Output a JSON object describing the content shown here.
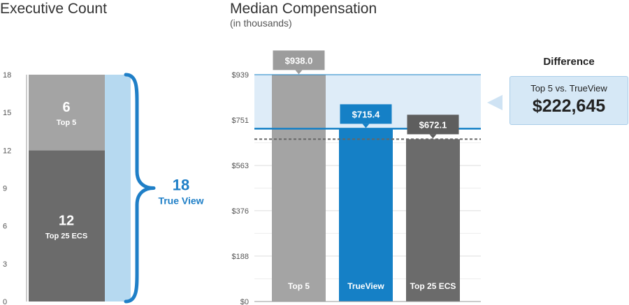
{
  "chart_data": [
    {
      "type": "bar",
      "stacked": true,
      "title": "Executive Count",
      "yticks": [
        "0",
        "3",
        "6",
        "9",
        "12",
        "15",
        "18"
      ],
      "ylim": [
        0,
        18
      ],
      "segments": [
        {
          "label": "Top 25 ECS",
          "value": 12,
          "display": "12",
          "color": "#6b6b6b"
        },
        {
          "label": "Top 5",
          "value": 6,
          "display": "6",
          "color": "#a4a4a4"
        }
      ],
      "bracket": {
        "label": "True View",
        "value": 18,
        "display": "18",
        "color": "#1f7fc7",
        "fill": "#b6d9f0"
      }
    },
    {
      "type": "bar",
      "title": "Median Compensation",
      "subtitle": "(in thousands)",
      "yticks": [
        "$0",
        "$188",
        "$376",
        "$563",
        "$751",
        "$939"
      ],
      "ylim": [
        0,
        939
      ],
      "categories": [
        "Top 5",
        "TrueView",
        "Top 25 ECS"
      ],
      "values": [
        938.0,
        715.4,
        672.1
      ],
      "value_labels": [
        "$938.0",
        "$715.4",
        "$672.1"
      ],
      "colors": [
        "#a4a4a4",
        "#1580c6",
        "#6b6b6b"
      ],
      "callout_colors": [
        "#9c9c9c",
        "#1580c6",
        "#5e5e5e"
      ],
      "reference_lines": [
        {
          "value": 715.4,
          "style": "solid",
          "color": "#1580c6"
        },
        {
          "value": 672.1,
          "style": "dashed",
          "color": "#666666"
        }
      ],
      "band": {
        "from": 715.4,
        "to": 939,
        "color": "#dcebf8"
      }
    }
  ],
  "difference": {
    "title": "Difference",
    "subtitle": "Top 5 vs. TrueView",
    "value": "$222,645"
  }
}
